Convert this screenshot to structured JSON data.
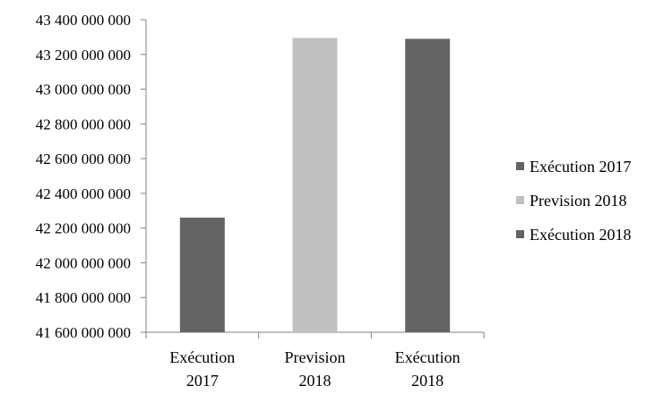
{
  "chart_data": {
    "type": "bar",
    "title": "",
    "xlabel": "",
    "ylabel": "",
    "categories": [
      [
        "Exécution",
        "2017"
      ],
      [
        "Prevision",
        "2018"
      ],
      [
        "Exécution",
        "2018"
      ]
    ],
    "values": [
      42260000000,
      43295000000,
      43290000000
    ],
    "bar_colors": [
      "#646464",
      "#c0c0c0",
      "#646464"
    ],
    "ylim": [
      41600000000,
      43400000000
    ],
    "ytick_step": 200000000,
    "ytick_labels": [
      "41 600 000 000",
      "41 800 000 000",
      "42 000 000 000",
      "42 200 000 000",
      "42 400 000 000",
      "42 600 000 000",
      "42 800 000 000",
      "43 000 000 000",
      "43 200 000 000",
      "43 400 000 000"
    ],
    "grid": false,
    "legend": {
      "position": "right",
      "entries": [
        {
          "name": "Exécution 2017",
          "color": "#646464"
        },
        {
          "name": "Prevision 2018",
          "color": "#c0c0c0"
        },
        {
          "name": "Exécution 2018",
          "color": "#646464"
        }
      ]
    }
  }
}
